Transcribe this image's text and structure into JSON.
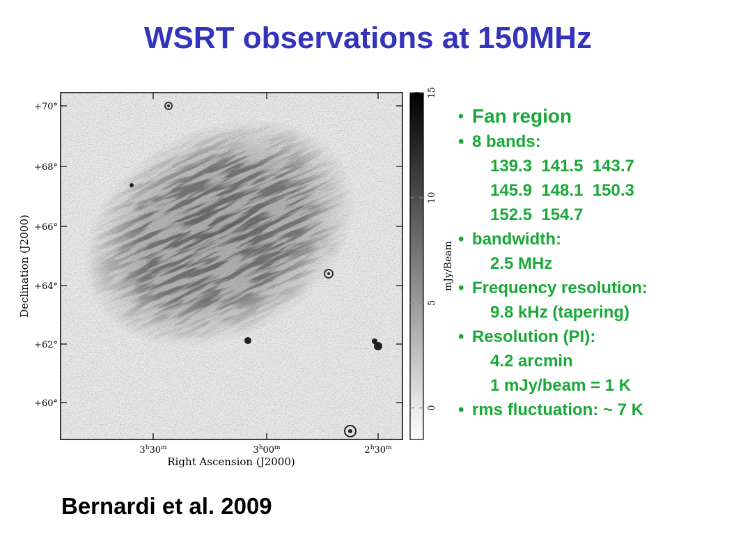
{
  "title": "WSRT observations at 150MHz",
  "figure": {
    "y_axis_label": "Declination (J2000)",
    "x_axis_label": "Right Ascension (J2000)",
    "dec_ticks": [
      "+70°",
      "+68°",
      "+66°",
      "+64°",
      "+62°",
      "+60°"
    ],
    "ra_ticks": [
      {
        "h": "3",
        "m": "30"
      },
      {
        "h": "3",
        "m": "00"
      },
      {
        "h": "2",
        "m": "30"
      }
    ],
    "colorbar_label": "mJy/Beam",
    "colorbar_ticks": [
      "15",
      "10",
      "5",
      "0"
    ],
    "colorbar_range": [
      -1.5,
      15
    ]
  },
  "bullets": [
    {
      "text": "Fan region",
      "sub": []
    },
    {
      "text": "8 bands:",
      "sub": [
        "139.3  141.5  143.7",
        "145.9  148.1  150.3",
        "152.5  154.7"
      ]
    },
    {
      "text": "bandwidth:",
      "sub": [
        "2.5 MHz"
      ]
    },
    {
      "text": "Frequency resolution:",
      "sub": [
        "9.8 kHz (tapering)"
      ]
    },
    {
      "text": "Resolution (PI):",
      "sub": [
        "4.2 arcmin",
        "1 mJy/beam = 1 K"
      ]
    },
    {
      "text": "rms fluctuation:  ~ 7 K",
      "sub": []
    }
  ],
  "citation": "Bernardi et al. 2009",
  "colors": {
    "title": "#3333bb",
    "bullets": "#1aa838"
  }
}
